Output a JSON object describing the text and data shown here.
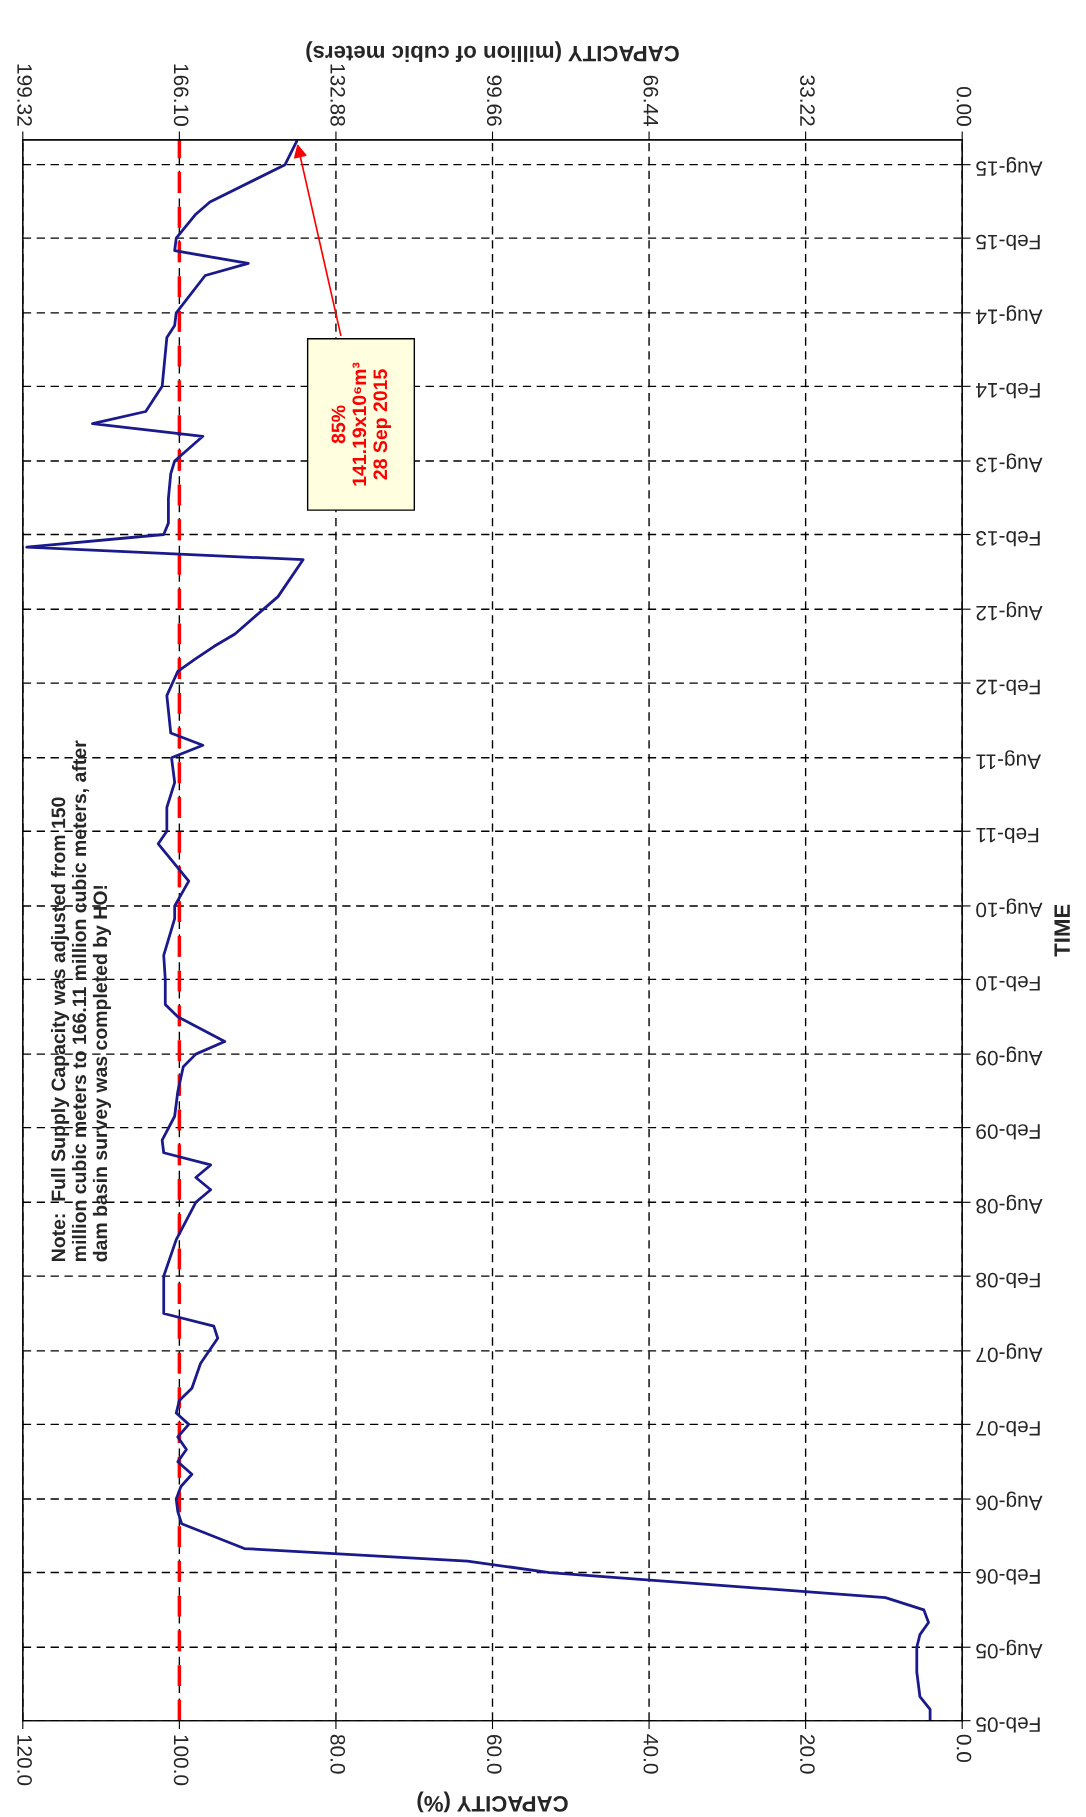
{
  "chart_data": {
    "type": "line",
    "orientation": "horizontal",
    "xlabel": "CAPACITY (%)",
    "x2label": "CAPACITY (million of cubic meters)",
    "ylabel": "TIME",
    "xlim": [
      120,
      0
    ],
    "xticks": [
      {
        "value": 120,
        "label": "120.0"
      },
      {
        "value": 100,
        "label": "100.0"
      },
      {
        "value": 80,
        "label": "80.0"
      },
      {
        "value": 60,
        "label": "60.0"
      },
      {
        "value": 40,
        "label": "40.0"
      },
      {
        "value": 20,
        "label": "20.0"
      },
      {
        "value": 0,
        "label": "0.0"
      }
    ],
    "x2lim": [
      199.32,
      0
    ],
    "x2ticks": [
      199.32,
      {
        "value": 166.1,
        "label": "166.10"
      },
      132.88,
      99.66,
      66.44,
      33.22,
      {
        "value": 0,
        "label": "0.00"
      }
    ],
    "ylim": [
      "2005-02-01",
      "2015-10-01"
    ],
    "yticks": [
      {
        "value": "2005-02-01",
        "label": "Feb-05"
      },
      {
        "value": "2005-08-01",
        "label": "Aug-05"
      },
      {
        "value": "2006-02-01",
        "label": "Feb-06"
      },
      {
        "value": "2006-08-01",
        "label": "Aug-06"
      },
      {
        "value": "2007-02-01",
        "label": "Feb-07"
      },
      {
        "value": "2007-08-01",
        "label": "Aug-07"
      },
      {
        "value": "2008-02-01",
        "label": "Feb-08"
      },
      {
        "value": "2008-08-01",
        "label": "Aug-08"
      },
      {
        "value": "2009-02-01",
        "label": "Feb-09"
      },
      {
        "value": "2009-08-01",
        "label": "Aug-09"
      },
      {
        "value": "2010-02-01",
        "label": "Feb-10"
      },
      {
        "value": "2010-08-01",
        "label": "Aug-10"
      },
      {
        "value": "2011-02-01",
        "label": "Feb-11"
      },
      {
        "value": "2011-08-01",
        "label": "Aug-11"
      },
      {
        "value": "2012-02-01",
        "label": "Feb-12"
      },
      {
        "value": "2012-08-01",
        "label": "Aug-12"
      },
      {
        "value": "2013-02-01",
        "label": "Feb-13"
      },
      {
        "value": "2013-08-01",
        "label": "Aug-13"
      },
      {
        "value": "2014-02-01",
        "label": "Feb-14"
      },
      {
        "value": "2014-08-01",
        "label": "Aug-14"
      },
      {
        "value": "2015-02-01",
        "label": "Feb-15"
      },
      {
        "value": "2015-08-01",
        "label": "Aug-15"
      }
    ],
    "grid": true,
    "legend": false,
    "marker": "none",
    "line_style": "solid",
    "series": [
      {
        "color": "#1a1a8c",
        "x": [
          "2005-02",
          "2005-03",
          "2005-04",
          "2005-06",
          "2005-08",
          "2005-09",
          "2005-10",
          "2005-11",
          "2005-12",
          "2006-02",
          "2006-03",
          "2006-04",
          "2006-06",
          "2006-07",
          "2006-08",
          "2006-09",
          "2006-10",
          "2006-11",
          "2006-12",
          "2007-01",
          "2007-02",
          "2007-03",
          "2007-04",
          "2007-05",
          "2007-07",
          "2007-09",
          "2007-10",
          "2007-11",
          "2008-01",
          "2008-02",
          "2008-05",
          "2008-08",
          "2008-09",
          "2008-10",
          "2008-11",
          "2008-12",
          "2009-01",
          "2009-03",
          "2009-05",
          "2009-07",
          "2009-08",
          "2009-09",
          "2009-11",
          "2009-12",
          "2010-02",
          "2010-04",
          "2010-07",
          "2010-08",
          "2010-10",
          "2011-01",
          "2011-02",
          "2011-04",
          "2011-06",
          "2011-08",
          "2011-09",
          "2011-10",
          "2012-01",
          "2012-03",
          "2012-04",
          "2012-05",
          "2012-06",
          "2012-09",
          "2012-12",
          "2013-01",
          "2013-02",
          "2013-03",
          "2013-05",
          "2013-07",
          "2013-08",
          "2013-10",
          "2013-11",
          "2013-12",
          "2014-02",
          "2014-06",
          "2014-07",
          "2014-08",
          "2014-11",
          "2014-12",
          "2015-01",
          "2015-02",
          "2015-04",
          "2015-05",
          "2015-08",
          "2015-09-28"
        ],
        "values": [
          4.1,
          4.1,
          5.4,
          5.8,
          5.8,
          5.4,
          4.3,
          4.9,
          9.8,
          52.7,
          63.2,
          91.7,
          99.7,
          100.2,
          100.4,
          99.8,
          98.4,
          100.2,
          99.1,
          100.2,
          98.8,
          100.4,
          100,
          98.4,
          97.3,
          95.1,
          95.6,
          102,
          102,
          102,
          100.4,
          97.9,
          96,
          97.9,
          96,
          102,
          102.2,
          100.6,
          100.2,
          99.5,
          97.9,
          94.2,
          100.2,
          101.8,
          101.8,
          102,
          100.6,
          100.6,
          98.8,
          102.7,
          101.6,
          101.6,
          100.6,
          101,
          97,
          101.1,
          101.6,
          100.2,
          97.9,
          95.6,
          92.9,
          87.4,
          84.2,
          119.5,
          102,
          101.4,
          101.4,
          101.1,
          100.6,
          97,
          111.1,
          104.3,
          102.2,
          101.6,
          100.6,
          100.4,
          96.7,
          91.2,
          100.6,
          100.4,
          97.9,
          96.1,
          86.5,
          85
        ]
      }
    ],
    "ref_lines": [
      {
        "axis": "x",
        "value": 100,
        "color": "#ff0000",
        "line_style": "dashed"
      }
    ],
    "annotations": [
      "Note:  Full Supply Capacity was adjusted from 150\nmillion cubic meters to 166.11 million cubic meters, after\ndam basin survey was completed by HO!",
      "85%\n141.19x10⁶m³\n28 Sep 2015"
    ]
  }
}
